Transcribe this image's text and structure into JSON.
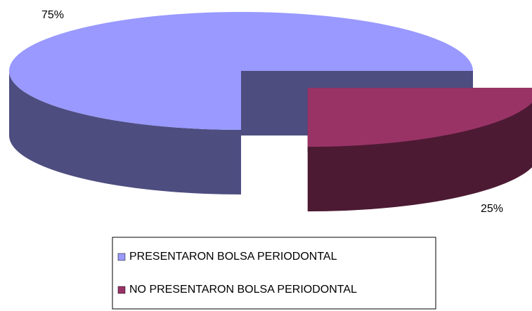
{
  "chart_data": {
    "type": "pie",
    "categories": [
      "PRESENTARON BOLSA PERIODONTAL",
      "NO PRESENTARON BOLSA PERIODONTAL"
    ],
    "values": [
      75,
      25
    ],
    "value_labels": [
      "75%",
      "25%"
    ],
    "colors": [
      "#9999ff",
      "#993366"
    ],
    "exploded": [
      false,
      true
    ],
    "three_d": true,
    "legend": "bottom"
  }
}
